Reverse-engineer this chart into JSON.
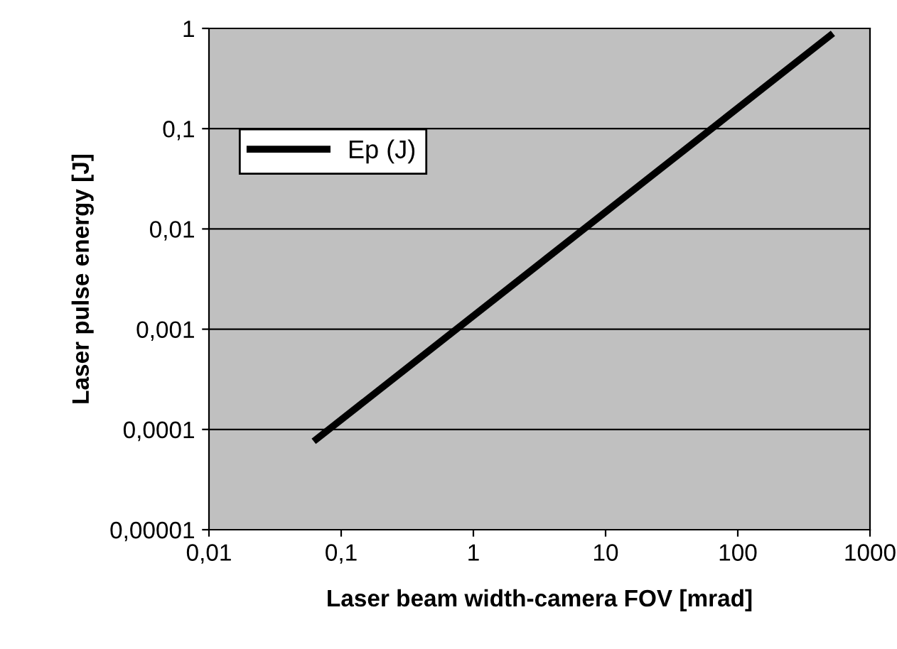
{
  "chart_data": {
    "type": "line",
    "xlabel": "Laser beam width-camera FOV [mrad]",
    "ylabel": "Laser pulse energy [J]",
    "log": "xy",
    "grid": "y",
    "legend": "top left",
    "marker": "none",
    "line_style": "solid",
    "xlim": [
      0.01,
      1000
    ],
    "ylim": [
      1e-05,
      1
    ],
    "xticks": [
      {
        "value": 0.01,
        "label": "0,01"
      },
      {
        "value": 0.1,
        "label": "0,1"
      },
      1,
      10,
      100,
      1000
    ],
    "yticks": [
      {
        "value": 1e-05,
        "label": "0,00001"
      },
      {
        "value": 0.0001,
        "label": "0,0001"
      },
      {
        "value": 0.001,
        "label": "0,001"
      },
      {
        "value": 0.01,
        "label": "0,01"
      },
      {
        "value": 0.1,
        "label": "0,1"
      },
      1
    ],
    "series": [
      {
        "name": "Ep (J)",
        "color": "#000000",
        "x": [
          0.065,
          500
        ],
        "values": [
          8e-05,
          0.85
        ]
      }
    ]
  }
}
